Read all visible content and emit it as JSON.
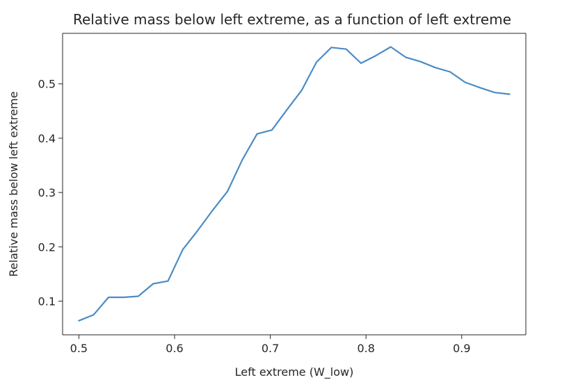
{
  "chart_data": {
    "type": "line",
    "title": "Relative mass below left extreme, as a function of left extreme",
    "xlabel": "Left extreme (W_low)",
    "ylabel": "Relative mass below left extreme",
    "xlim": [
      0.483,
      0.967
    ],
    "ylim": [
      0.038,
      0.593
    ],
    "xticks": [
      0.5,
      0.6,
      0.7,
      0.8,
      0.9
    ],
    "xtick_labels": [
      "0.5",
      "0.6",
      "0.7",
      "0.8",
      "0.9"
    ],
    "yticks": [
      0.1,
      0.2,
      0.3,
      0.4,
      0.5
    ],
    "ytick_labels": [
      "0.1",
      "0.2",
      "0.3",
      "0.4",
      "0.5"
    ],
    "grid": false,
    "line_color": "#4b8bc6",
    "series": [
      {
        "x": [
          0.5,
          0.5155,
          0.531,
          0.5466,
          0.5621,
          0.5776,
          0.5931,
          0.6086,
          0.6241,
          0.6397,
          0.6552,
          0.6707,
          0.6862,
          0.7017,
          0.7172,
          0.7328,
          0.7483,
          0.7638,
          0.7793,
          0.7948,
          0.8103,
          0.8259,
          0.8414,
          0.8569,
          0.8724,
          0.8879,
          0.9034,
          0.919,
          0.9345,
          0.95
        ],
        "y": [
          0.064,
          0.075,
          0.107,
          0.107,
          0.109,
          0.132,
          0.137,
          0.195,
          0.23,
          0.267,
          0.302,
          0.36,
          0.408,
          0.415,
          0.452,
          0.488,
          0.54,
          0.567,
          0.564,
          0.538,
          0.552,
          0.568,
          0.549,
          0.541,
          0.53,
          0.522,
          0.503,
          0.493,
          0.484,
          0.481
        ]
      }
    ]
  }
}
